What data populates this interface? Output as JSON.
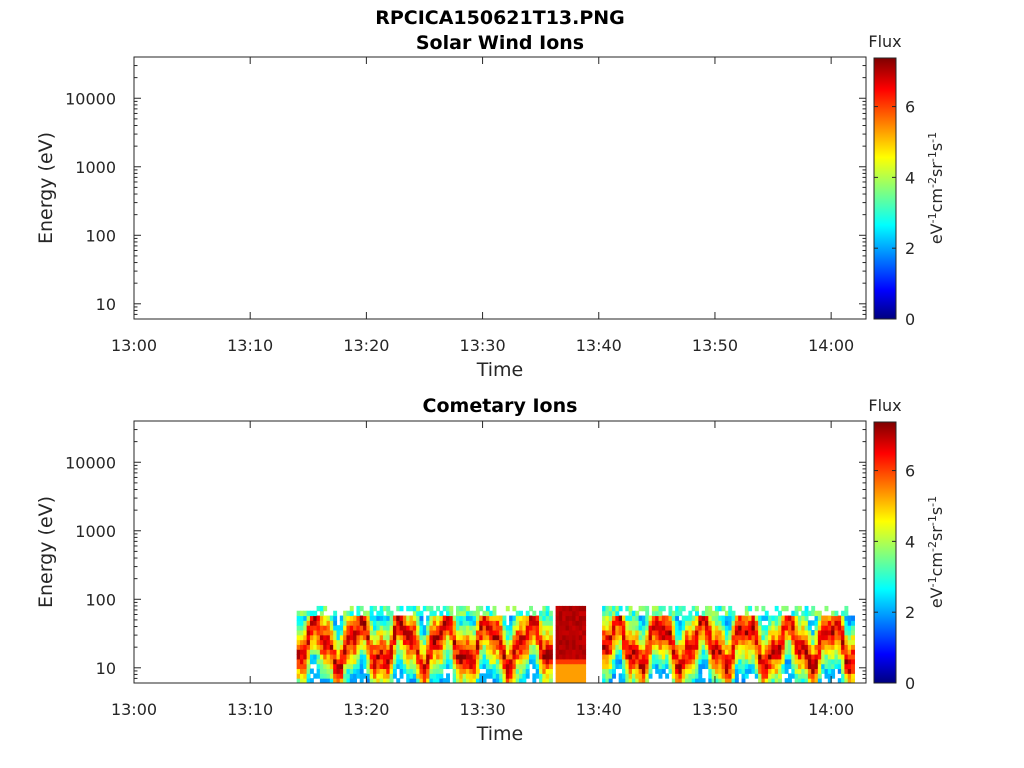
{
  "figure_title": "RPCICA150621T13.PNG",
  "chart_data": [
    {
      "type": "heatmap",
      "title": "Solar Wind Ions",
      "xlabel": "Time",
      "ylabel": "Energy (eV)",
      "y_scale": "log",
      "ylim": [
        6,
        40000
      ],
      "xlim": [
        "13:00",
        "14:03"
      ],
      "x_ticks": [
        "13:00",
        "13:10",
        "13:20",
        "13:30",
        "13:40",
        "13:50",
        "14:00"
      ],
      "y_ticks": [
        "10",
        "100",
        "1000",
        "10000"
      ],
      "colorbar": {
        "title": "Flux",
        "label": "eV-1cm-2sr-1s-1",
        "range": [
          0,
          7.4
        ],
        "ticks": [
          "0",
          "2",
          "4",
          "6"
        ],
        "colormap": "jet"
      },
      "data_present": false
    },
    {
      "type": "heatmap",
      "title": "Cometary Ions",
      "xlabel": "Time",
      "ylabel": "Energy (eV)",
      "y_scale": "log",
      "ylim": [
        6,
        40000
      ],
      "xlim": [
        "13:00",
        "14:03"
      ],
      "x_ticks": [
        "13:00",
        "13:10",
        "13:20",
        "13:30",
        "13:40",
        "13:50",
        "14:00"
      ],
      "y_ticks": [
        "10",
        "100",
        "1000",
        "10000"
      ],
      "colorbar": {
        "title": "Flux",
        "label": "eV-1cm-2sr-1s-1",
        "range": [
          0,
          7.4
        ],
        "ticks": [
          "0",
          "2",
          "4",
          "6"
        ],
        "colormap": "jet"
      },
      "data_present": true,
      "data_time_range": [
        "13:14",
        "14:02"
      ],
      "energy_range_eV": [
        6,
        80
      ],
      "data_gaps": [
        [
          "13:36",
          "13:36"
        ],
        [
          "13:39",
          "13:40"
        ]
      ],
      "peak_flux_period": [
        "13:36",
        "13:39"
      ]
    }
  ]
}
